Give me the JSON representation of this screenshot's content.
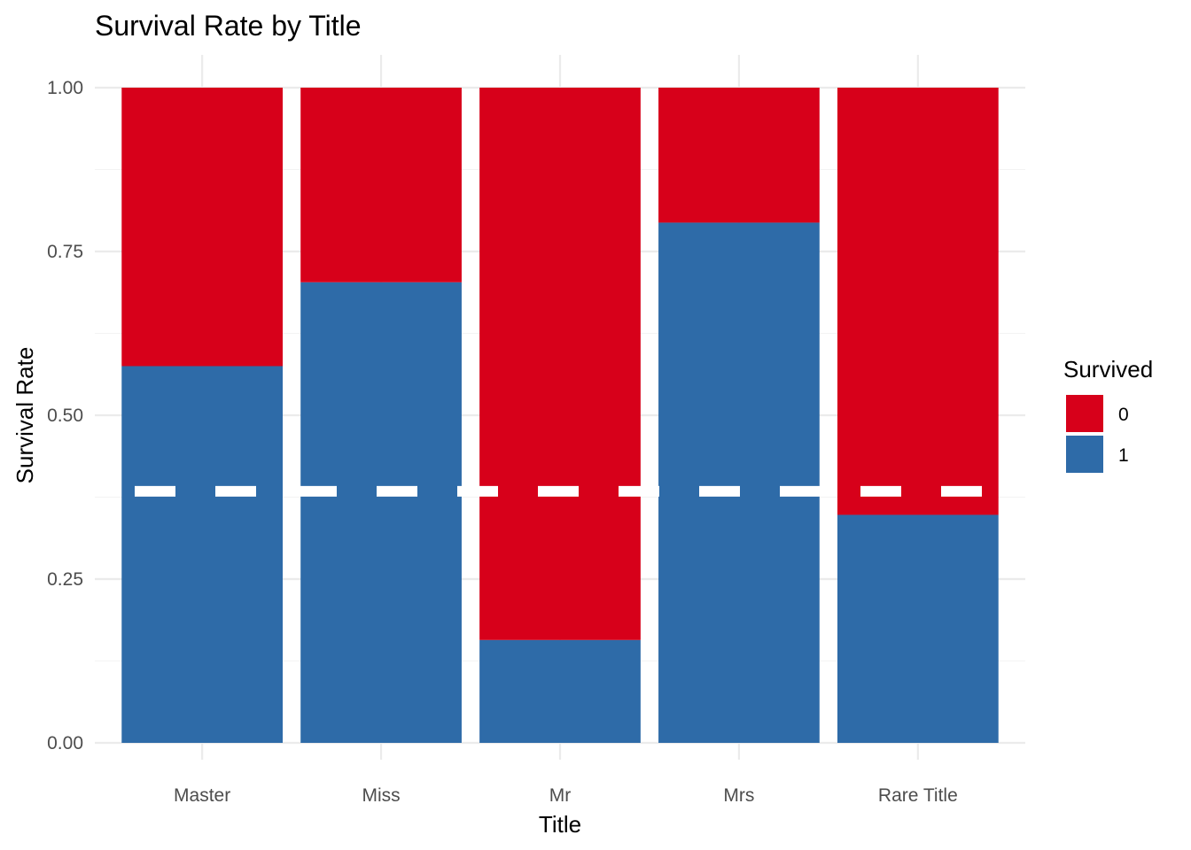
{
  "chart_data": {
    "type": "bar",
    "stacked": true,
    "position": "fill",
    "title": "Survival Rate by Title",
    "xlabel": "Title",
    "ylabel": "Survival Rate",
    "categories": [
      "Master",
      "Miss",
      "Mr",
      "Mrs",
      "Rare Title"
    ],
    "series": [
      {
        "name": "1",
        "color": "#2e6ba8",
        "values": [
          0.575,
          0.703,
          0.157,
          0.794,
          0.348
        ]
      },
      {
        "name": "0",
        "color": "#d7001a",
        "values": [
          0.425,
          0.297,
          0.843,
          0.206,
          0.652
        ]
      }
    ],
    "ylim": [
      0,
      1
    ],
    "yticks": [
      "0.00",
      "0.25",
      "0.50",
      "0.75",
      "1.00"
    ],
    "reference_line": {
      "y": 0.384,
      "style": "dashed",
      "color": "#ffffff"
    },
    "legend": {
      "title": "Survived",
      "placement": "right",
      "entries": [
        {
          "label": "0",
          "color": "#d7001a"
        },
        {
          "label": "1",
          "color": "#2e6ba8"
        }
      ]
    },
    "grid": true
  }
}
